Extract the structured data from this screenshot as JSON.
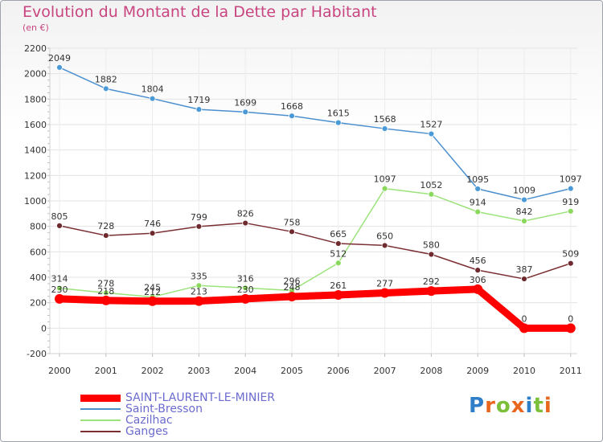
{
  "title": "Evolution du Montant de la Dette par Habitant",
  "subtitle": "(en €)",
  "logo_text": "Proxiti",
  "logo_letters": [
    {
      "ch": "P",
      "color": "#2f7fc8"
    },
    {
      "ch": "r",
      "color": "#e8671f"
    },
    {
      "ch": "o",
      "color": "#7bbf3a"
    },
    {
      "ch": "x",
      "color": "#e8671f"
    },
    {
      "ch": "i",
      "color": "#2f7fc8"
    },
    {
      "ch": "t",
      "color": "#7bbf3a"
    },
    {
      "ch": "i",
      "color": "#e8671f"
    }
  ],
  "chart_data": {
    "type": "line",
    "title": "Evolution du Montant de la Dette par Habitant",
    "subtitle": "(en €)",
    "x": [
      "2000",
      "2001",
      "2002",
      "2003",
      "2004",
      "2005",
      "2006",
      "2007",
      "2008",
      "2009",
      "2010",
      "2011"
    ],
    "ylim": [
      -200,
      2200
    ],
    "yticks": [
      -200,
      0,
      200,
      400,
      600,
      800,
      1000,
      1200,
      1400,
      1600,
      1800,
      2000,
      2200
    ],
    "grid": true,
    "legend_position": "bottom-left",
    "series": [
      {
        "name": "Saint-Bresson",
        "color": "#4b8fcf",
        "marker": "#4b9ad8",
        "values": [
          2049,
          1882,
          1804,
          1719,
          1699,
          1668,
          1615,
          1568,
          1527,
          1095,
          1009,
          1097
        ]
      },
      {
        "name": "Cazilhac",
        "color": "#9be37a",
        "marker": "#8ad85e",
        "values": [
          314,
          278,
          245,
          335,
          316,
          296,
          512,
          1097,
          1052,
          914,
          842,
          919
        ]
      },
      {
        "name": "Ganges",
        "color": "#7a2f33",
        "marker": "#6e2a2e",
        "values": [
          805,
          728,
          746,
          799,
          826,
          758,
          665,
          650,
          580,
          456,
          387,
          509
        ]
      },
      {
        "name": "SAINT-LAURENT-LE-MINIER",
        "color": "#ff0000",
        "marker": "#ff0000",
        "values": [
          230,
          218,
          212,
          213,
          230,
          248,
          261,
          277,
          292,
          306,
          0,
          0
        ],
        "bold": true
      }
    ],
    "legend_order": [
      "SAINT-LAURENT-LE-MINIER",
      "Saint-Bresson",
      "Cazilhac",
      "Ganges"
    ]
  }
}
